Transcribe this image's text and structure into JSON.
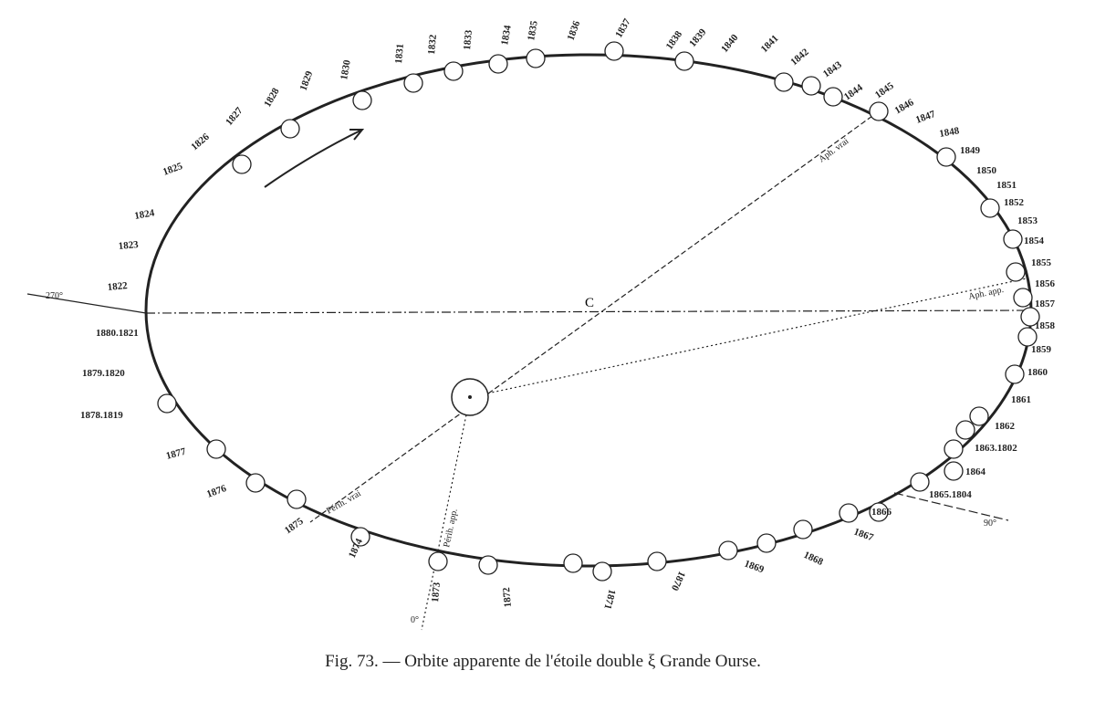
{
  "year_labels": [
    "1822",
    "1880.1821",
    "1879.1820",
    "1878.1819",
    "1877",
    "1876",
    "1875",
    "1874",
    "1873",
    "1872",
    "1871",
    "1870",
    "1869",
    "1868",
    "1867",
    "1866",
    "1865.1804",
    "1864",
    "1863.1802",
    "1862",
    "1861",
    "1860",
    "1859",
    "1858",
    "1857",
    "1856",
    "1855",
    "1854",
    "1853",
    "1852",
    "1851",
    "1850",
    "1849",
    "1848",
    "1847",
    "1846",
    "1845",
    "1844",
    "1843",
    "1842",
    "1841",
    "1840",
    "1839",
    "1838",
    "1837",
    "1836",
    "1835",
    "1834",
    "1833",
    "1832",
    "1831",
    "1830",
    "1829",
    "1828",
    "1827",
    "1826",
    "1825",
    "1824",
    "1823"
  ],
  "annotations": {
    "deg270": "270°",
    "deg90": "90°",
    "deg0": "0°",
    "center": "C",
    "aph_vrai": "Aph. vrai",
    "aph_app": "Aph. app.",
    "perih_vrai": "Périh. vrai",
    "perih_app": "Périh. app."
  },
  "caption": "Fig. 73. — Orbite apparente de l'étoile double ξ Grande Ourse."
}
